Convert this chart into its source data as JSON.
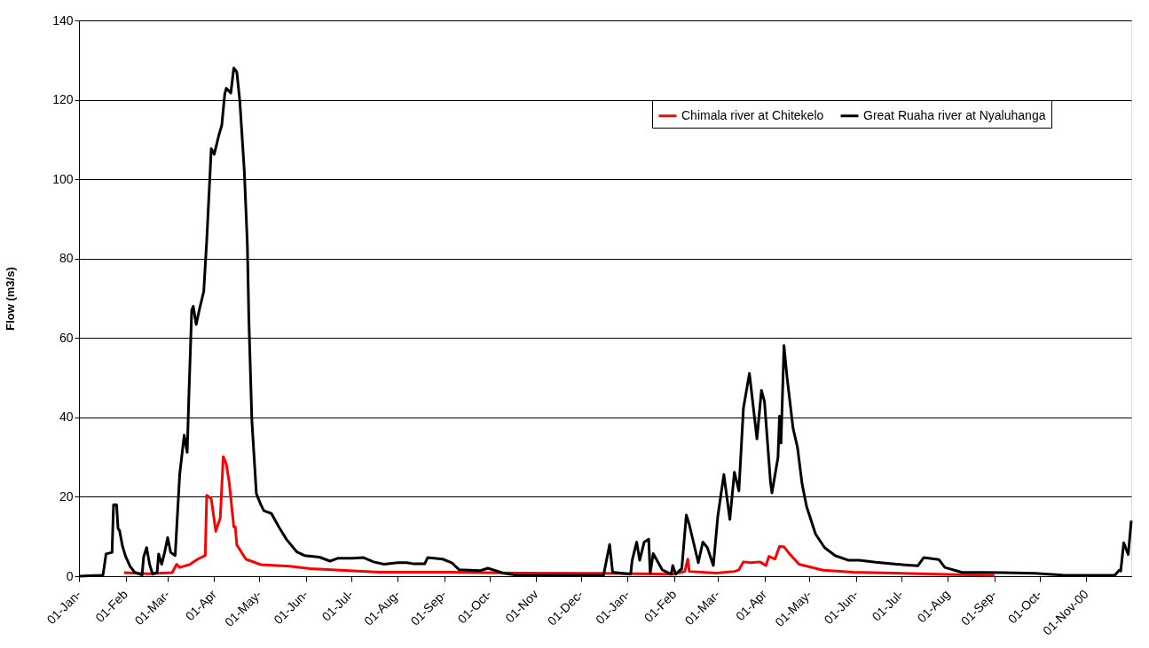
{
  "chart_data": {
    "type": "line",
    "ylabel": "Flow (m3/s)",
    "ylim": [
      0,
      140
    ],
    "yticks": [
      0,
      20,
      40,
      60,
      80,
      100,
      120,
      140
    ],
    "xlim": [
      "1999-01-01",
      "2000-12-01"
    ],
    "xticks": [
      {
        "value": "1999-01-01",
        "label": "01-Jan-"
      },
      {
        "value": "1999-02-01",
        "label": "01-Feb"
      },
      {
        "value": "1999-03-01",
        "label": "01-Mar-"
      },
      {
        "value": "1999-04-01",
        "label": "01-Apr"
      },
      {
        "value": "1999-05-01",
        "label": "01-May-"
      },
      {
        "value": "1999-06-01",
        "label": "01-Jun-"
      },
      {
        "value": "1999-07-01",
        "label": "01-Jul-"
      },
      {
        "value": "1999-08-01",
        "label": "01-Aug-"
      },
      {
        "value": "1999-09-01",
        "label": "01-Sep-"
      },
      {
        "value": "1999-10-01",
        "label": "01-Oct-"
      },
      {
        "value": "1999-11-01",
        "label": "01-Nov"
      },
      {
        "value": "1999-12-01",
        "label": "01-Dec-"
      },
      {
        "value": "2000-01-01",
        "label": "01-Jan-"
      },
      {
        "value": "2000-02-01",
        "label": "01-Feb"
      },
      {
        "value": "2000-03-01",
        "label": "01-Mar-"
      },
      {
        "value": "2000-04-01",
        "label": "01-Apr"
      },
      {
        "value": "2000-05-01",
        "label": "01-May-"
      },
      {
        "value": "2000-06-01",
        "label": "01-Jun-"
      },
      {
        "value": "2000-07-01",
        "label": "01-Jul-"
      },
      {
        "value": "2000-08-01",
        "label": "01-Aug"
      },
      {
        "value": "2000-09-01",
        "label": "01-Sep-"
      },
      {
        "value": "2000-10-01",
        "label": "01-Oct-"
      },
      {
        "value": "2000-11-01",
        "label": "01-Nov-00"
      }
    ],
    "grid": "y",
    "legend": "top right",
    "marker": "none",
    "line_style": "solid",
    "series": [
      {
        "name": "Chimala river at Chitekelo",
        "color": "#ff0000",
        "x": [
          "1999-01-31",
          "1999-02-16",
          "1999-03-04",
          "1999-03-07",
          "1999-03-09",
          "1999-03-16",
          "1999-03-21",
          "1999-03-26",
          "1999-03-27",
          "1999-03-30",
          "1999-04-02",
          "1999-04-05",
          "1999-04-07",
          "1999-04-09",
          "1999-04-11",
          "1999-04-14",
          "1999-04-15",
          "1999-04-16",
          "1999-04-22",
          "1999-05-02",
          "1999-05-21",
          "1999-06-04",
          "1999-07-20",
          "1999-09-04",
          "1999-10-20",
          "1999-12-16",
          "2000-01-31",
          "2000-02-08",
          "2000-02-10",
          "2000-02-11",
          "2000-02-29",
          "2000-03-12",
          "2000-03-15",
          "2000-03-18",
          "2000-03-23",
          "2000-03-29",
          "2000-04-02",
          "2000-04-04",
          "2000-04-08",
          "2000-04-11",
          "2000-04-14",
          "2000-04-18",
          "2000-04-24",
          "2000-05-10",
          "2000-05-30",
          "2000-08-07",
          "2000-09-01"
        ],
        "values": [
          0.9,
          0.6,
          0.9,
          3,
          2.2,
          3,
          4.3,
          5.2,
          20.4,
          19.5,
          11.3,
          14.7,
          30.1,
          28.3,
          23.5,
          12.4,
          12.4,
          7.9,
          4.3,
          2.9,
          2.5,
          1.9,
          1.0,
          1.0,
          0.8,
          0.7,
          0.5,
          1.2,
          4.3,
          1.2,
          0.8,
          1.2,
          1.6,
          3.6,
          3.4,
          3.6,
          2.7,
          5,
          4.3,
          7.5,
          7.4,
          5.5,
          3,
          1.5,
          1.0,
          0.4,
          0.2
        ]
      },
      {
        "name": "Great Ruaha river at Nyaluhanga",
        "color": "#000000",
        "x": [
          "1999-01-01",
          "1999-01-15",
          "1999-01-17",
          "1999-01-19",
          "1999-01-23",
          "1999-01-24",
          "1999-01-26",
          "1999-01-27",
          "1999-01-28",
          "1999-01-30",
          "1999-02-01",
          "1999-02-04",
          "1999-02-07",
          "1999-02-12",
          "1999-02-13",
          "1999-02-15",
          "1999-02-17",
          "1999-02-19",
          "1999-02-22",
          "1999-02-23",
          "1999-02-25",
          "1999-02-27",
          "1999-03-01",
          "1999-03-03",
          "1999-03-06",
          "1999-03-09",
          "1999-03-12",
          "1999-03-14",
          "1999-03-15",
          "1999-03-17",
          "1999-03-18",
          "1999-03-20",
          "1999-03-22",
          "1999-03-25",
          "1999-03-27",
          "1999-03-30",
          "1999-04-01",
          "1999-04-04",
          "1999-04-06",
          "1999-04-08",
          "1999-04-09",
          "1999-04-12",
          "1999-04-14",
          "1999-04-16",
          "1999-04-18",
          "1999-04-21",
          "1999-04-23",
          "1999-04-24",
          "1999-04-26",
          "1999-04-29",
          "1999-05-02",
          "1999-05-04",
          "1999-05-09",
          "1999-05-14",
          "1999-05-19",
          "1999-05-26",
          "1999-05-31",
          "1999-06-10",
          "1999-06-17",
          "1999-06-22",
          "1999-07-02",
          "1999-07-09",
          "1999-07-16",
          "1999-07-23",
          "1999-08-01",
          "1999-08-07",
          "1999-08-12",
          "1999-08-19",
          "1999-08-21",
          "1999-08-31",
          "1999-09-06",
          "1999-09-11",
          "1999-09-25",
          "1999-09-30",
          "1999-10-11",
          "1999-10-20",
          "1999-12-02",
          "1999-12-16",
          "1999-12-20",
          "1999-12-22",
          "2000-01-03",
          "2000-01-04",
          "2000-01-07",
          "2000-01-09",
          "2000-01-12",
          "2000-01-15",
          "2000-01-16",
          "2000-01-18",
          "2000-01-24",
          "2000-01-30",
          "2000-01-31",
          "2000-02-02",
          "2000-02-05",
          "2000-02-06",
          "2000-02-09",
          "2000-02-11",
          "2000-02-17",
          "2000-02-20",
          "2000-02-23",
          "2000-02-27",
          "2000-03-01",
          "2000-03-05",
          "2000-03-09",
          "2000-03-12",
          "2000-03-15",
          "2000-03-18",
          "2000-03-22",
          "2000-03-27",
          "2000-03-30",
          "2000-04-01",
          "2000-04-05",
          "2000-04-06",
          "2000-04-10",
          "2000-04-11",
          "2000-04-12",
          "2000-04-14",
          "2000-04-16",
          "2000-04-20",
          "2000-04-23",
          "2000-04-26",
          "2000-04-29",
          "2000-05-05",
          "2000-05-11",
          "2000-05-18",
          "2000-05-27",
          "2000-06-03",
          "2000-06-14",
          "2000-06-28",
          "2000-07-12",
          "2000-07-16",
          "2000-07-26",
          "2000-07-30",
          "2000-08-10",
          "2000-09-07",
          "2000-09-28",
          "2000-10-16",
          "2000-11-20",
          "2000-11-23",
          "2000-11-24",
          "2000-11-26",
          "2000-11-29",
          "2000-12-01"
        ],
        "values": [
          0,
          0.2,
          0.3,
          5.6,
          6,
          18,
          18,
          12,
          11.5,
          7.5,
          5,
          2.5,
          1,
          0.3,
          4.8,
          7.2,
          3,
          0.5,
          1,
          5.6,
          3,
          6,
          9.7,
          6,
          5.2,
          25.6,
          35.5,
          31.2,
          44,
          67,
          68,
          63.4,
          67,
          71.7,
          84.6,
          107.7,
          106.3,
          111,
          113.6,
          121.5,
          122.9,
          121.7,
          128,
          127,
          119.7,
          102,
          83.7,
          65,
          39.4,
          20.8,
          18,
          16.5,
          15.8,
          12.4,
          9.3,
          6.1,
          5.2,
          4.8,
          3.8,
          4.5,
          4.5,
          4.7,
          3.6,
          3,
          3.4,
          3.4,
          3.1,
          3.1,
          4.7,
          4.3,
          3.4,
          1.6,
          1.4,
          2,
          0.7,
          0.2,
          0.2,
          0.3,
          8,
          1,
          0.5,
          4,
          8.6,
          4,
          8.6,
          9.3,
          0.7,
          5.7,
          1.6,
          0.5,
          2.7,
          0.5,
          1.6,
          1.8,
          15.4,
          13,
          3.4,
          8.6,
          7.2,
          2.7,
          15.2,
          25.6,
          14.3,
          26.2,
          21.5,
          42.3,
          51.1,
          34.6,
          46.8,
          44,
          23.8,
          21,
          29.9,
          40.3,
          33.5,
          58.1,
          50.2,
          37.3,
          32.4,
          23.3,
          17.6,
          10.6,
          7.2,
          5.2,
          4.0,
          4.0,
          3.5,
          3.0,
          2.6,
          4.7,
          4.2,
          2.2,
          1.0,
          0.9,
          0.7,
          0.3,
          0.2,
          1.5,
          1.3,
          8.4,
          5.5,
          14
        ]
      }
    ]
  }
}
